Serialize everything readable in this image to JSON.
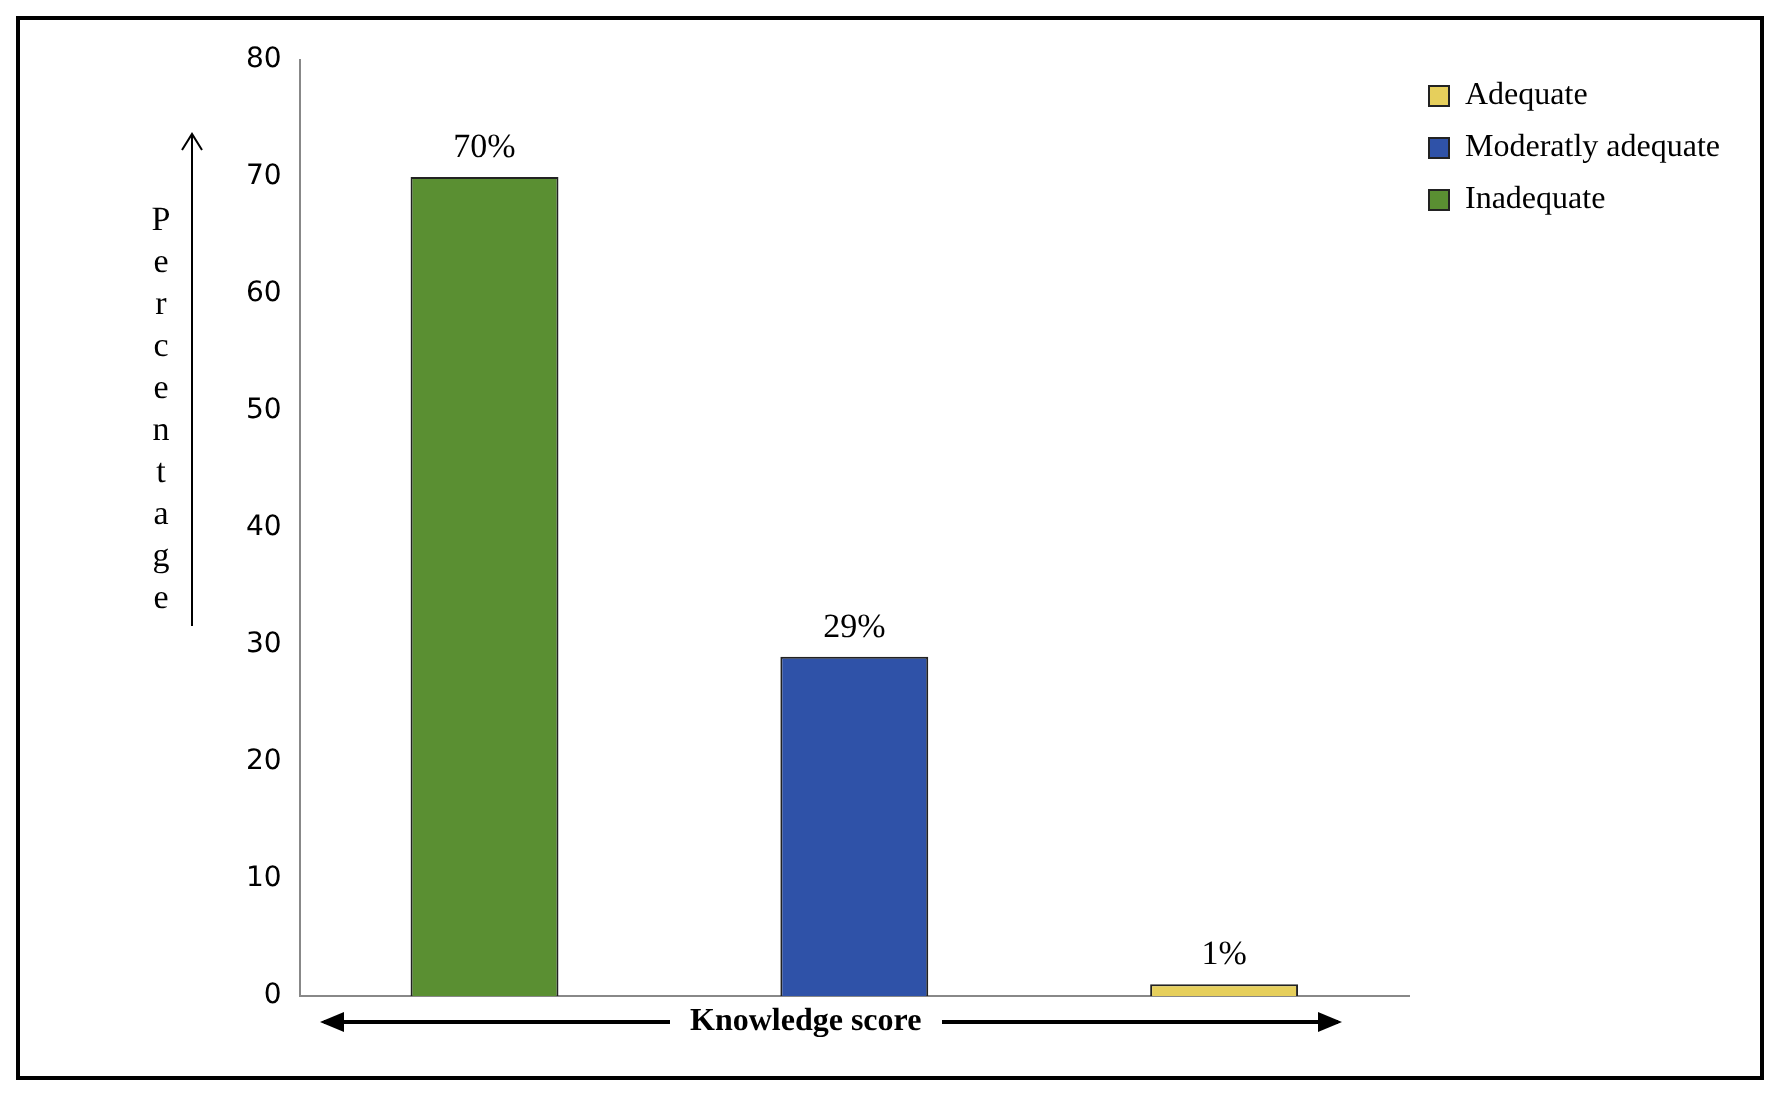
{
  "chart_data": {
    "type": "bar",
    "xlabel": "Knowledge score",
    "ylabel": "Percentage",
    "categories": [
      null,
      null,
      null
    ],
    "series": [
      {
        "name": "Inadequate",
        "color": "#5a8f32",
        "values": [
          70,
          null,
          null
        ],
        "value_labels": [
          "70%",
          null,
          null
        ]
      },
      {
        "name": "Moderatly adequate",
        "color": "#2f52a8",
        "values": [
          null,
          29,
          null
        ],
        "value_labels": [
          null,
          "29%",
          null
        ]
      },
      {
        "name": "Adequate",
        "color": "#e6cf5c",
        "values": [
          null,
          null,
          1
        ],
        "value_labels": [
          null,
          null,
          "1%"
        ]
      }
    ],
    "ylim": [
      0,
      80
    ],
    "yticks": [
      0,
      10,
      20,
      30,
      40,
      50,
      60,
      70,
      80
    ],
    "grid": false,
    "legend": "top right"
  }
}
